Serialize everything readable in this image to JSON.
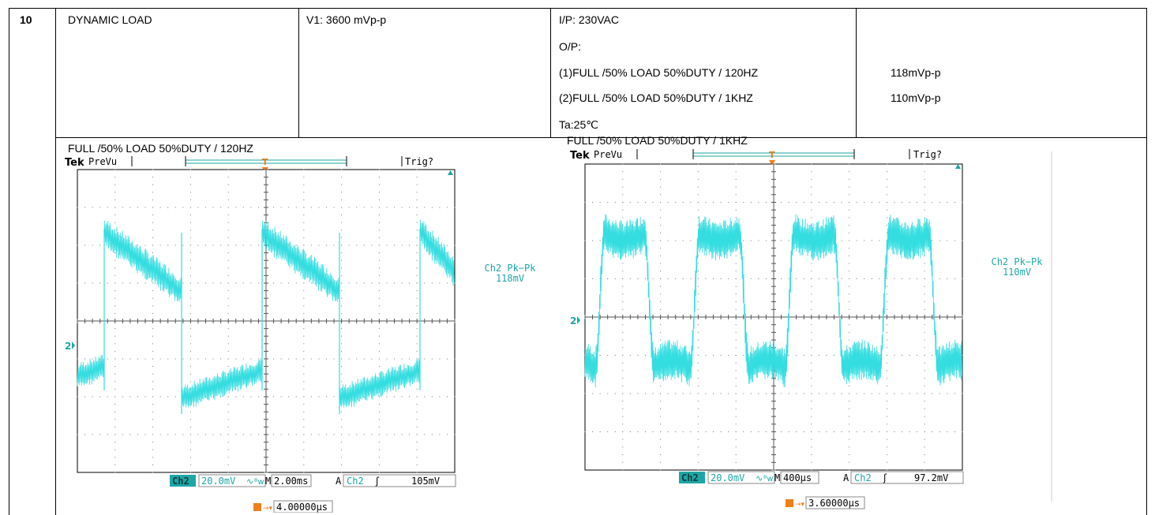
{
  "row": {
    "number": "10",
    "test_name": "DYNAMIC LOAD",
    "condition": "V1: 3600 mVp-p",
    "input": "I/P: 230VAC",
    "output_label": "O/P:",
    "cases": [
      {
        "desc": "(1)FULL /50% LOAD 50%DUTY / 120HZ",
        "result": "118mVp-p"
      },
      {
        "desc": "(2)FULL /50% LOAD 50%DUTY / 1KHZ",
        "result": "110mVp-p"
      }
    ],
    "ambient": "Ta:25℃"
  },
  "scopes": [
    {
      "caption": "FULL /50% LOAD 50%DUTY / 120HZ",
      "brand": "Tek",
      "mode": "PreVu",
      "trig_status": "Trig?",
      "marker_t": "T",
      "ch_marker": "2",
      "meas_label": "Ch2 Pk−Pk",
      "meas_value": "118mV",
      "ch_btn": "Ch2",
      "volts_div": "20.0mV",
      "bw_symbol": "∿",
      "bw_symbol2": "ᴮw",
      "time_prefix": "M",
      "time_div": "2.00ms",
      "trig_prefix": "A",
      "trig_ch": "Ch2",
      "trig_slope": "ʃ",
      "trig_level": "105mV",
      "offset_value": "4.00000µs",
      "colors": {
        "trace": "#33dde0",
        "ui": "#1ea6a6",
        "marker": "#f07f1a"
      }
    },
    {
      "caption": "FULL /50% LOAD 50%DUTY / 1KHZ",
      "brand": "Tek",
      "mode": "PreVu",
      "trig_status": "Trig?",
      "marker_t": "T",
      "ch_marker": "2",
      "meas_label": "Ch2 Pk−Pk",
      "meas_value": "110mV",
      "ch_btn": "Ch2",
      "volts_div": "20.0mV",
      "bw_symbol": "∿",
      "bw_symbol2": "ᴮw",
      "time_prefix": "M",
      "time_div": "400µs",
      "trig_prefix": "A",
      "trig_ch": "Ch2",
      "trig_slope": "ʃ",
      "trig_level": "97.2mV",
      "offset_value": "3.60000µs",
      "colors": {
        "trace": "#33dde0",
        "ui": "#1ea6a6",
        "marker": "#f07f1a"
      }
    }
  ]
}
